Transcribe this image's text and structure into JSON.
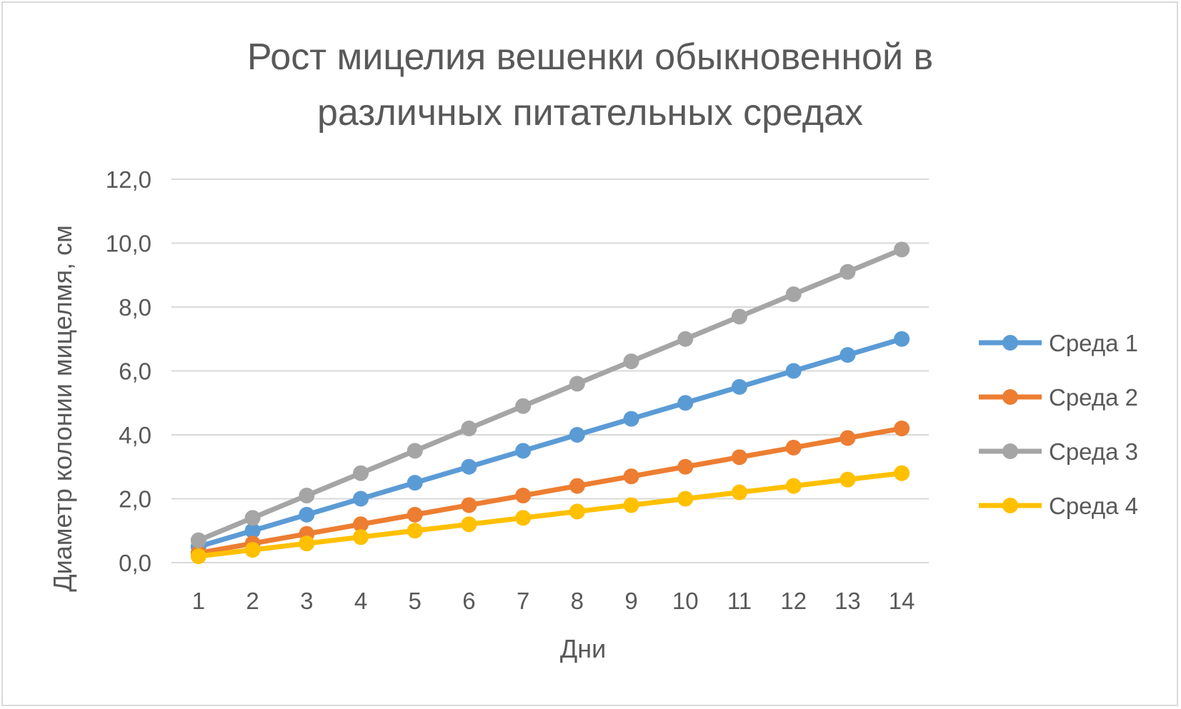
{
  "chart_data": {
    "type": "line",
    "title_line1": "Рост мицелия вешенки обыкновенной в",
    "title_line2": "различных питательных средах",
    "xlabel": "Дни",
    "ylabel": "Диаметр колонии мицелмя, см",
    "ylim": [
      0,
      12
    ],
    "yticks": [
      "0,0",
      "2,0",
      "4,0",
      "6,0",
      "8,0",
      "10,0",
      "12,0"
    ],
    "grid": true,
    "legend_position": "right",
    "categories": [
      "1",
      "2",
      "3",
      "4",
      "5",
      "6",
      "7",
      "8",
      "9",
      "10",
      "11",
      "12",
      "13",
      "14"
    ],
    "series": [
      {
        "name": "Среда 1",
        "color": "#5b9bd5",
        "values": [
          0.5,
          1.0,
          1.5,
          2.0,
          2.5,
          3.0,
          3.5,
          4.0,
          4.5,
          5.0,
          5.5,
          6.0,
          6.5,
          7.0
        ]
      },
      {
        "name": "Среда 2",
        "color": "#ed7d31",
        "values": [
          0.3,
          0.6,
          0.9,
          1.2,
          1.5,
          1.8,
          2.1,
          2.4,
          2.7,
          3.0,
          3.3,
          3.6,
          3.9,
          4.2
        ]
      },
      {
        "name": "Среда 3",
        "color": "#a5a5a5",
        "values": [
          0.7,
          1.4,
          2.1,
          2.8,
          3.5,
          4.2,
          4.9,
          5.6,
          6.3,
          7.0,
          7.7,
          8.4,
          9.1,
          9.8
        ]
      },
      {
        "name": "Среда 4",
        "color": "#ffc000",
        "values": [
          0.2,
          0.4,
          0.6,
          0.8,
          1.0,
          1.2,
          1.4,
          1.6,
          1.8,
          2.0,
          2.2,
          2.4,
          2.6,
          2.8
        ]
      }
    ]
  }
}
